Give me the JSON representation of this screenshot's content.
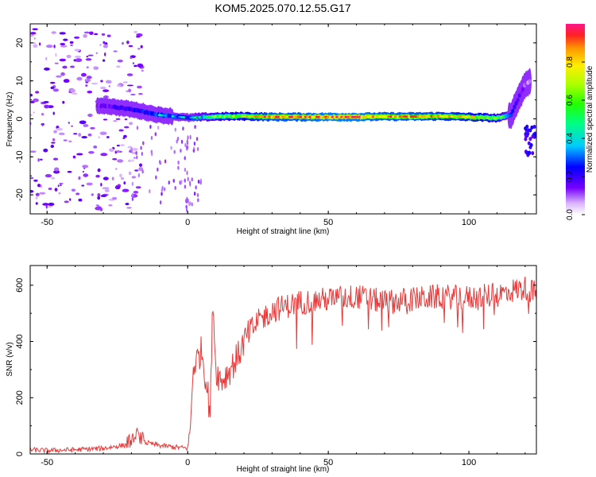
{
  "title": "KOM5.2025.070.12.55.G17",
  "chart_data": [
    {
      "type": "heatmap",
      "title": "KOM5.2025.070.12.55.G17",
      "xlabel": "Height of straight line (km)",
      "ylabel": "Frequency (Hz)",
      "xlim": [
        -56,
        124
      ],
      "ylim": [
        -25,
        25
      ],
      "x_ticks": [
        "-50",
        "0",
        "50",
        "100"
      ],
      "y_ticks": [
        "-20",
        "-10",
        "0",
        "10",
        "20"
      ],
      "colorbar": {
        "label": "Normalized spectral amplitude",
        "range": [
          0.0,
          1.0
        ],
        "ticks": [
          "0.0",
          "0.2",
          "0.4",
          "0.6",
          "0.8"
        ]
      },
      "ridge": {
        "x": [
          -30,
          -20,
          -10,
          0,
          10,
          20,
          30,
          40,
          50,
          60,
          70,
          80,
          90,
          100,
          110,
          115,
          118,
          120,
          122
        ],
        "freq": [
          3.5,
          2.5,
          1.0,
          0.3,
          0.6,
          0.7,
          0.5,
          0.5,
          0.5,
          0.5,
          0.6,
          0.6,
          0.7,
          0.5,
          0.2,
          1.0,
          6.0,
          9.0,
          10.0
        ],
        "amplitude": [
          0.15,
          0.25,
          0.35,
          0.3,
          0.55,
          0.7,
          0.85,
          0.85,
          0.9,
          0.9,
          0.85,
          0.85,
          0.8,
          0.75,
          0.6,
          0.3,
          0.2,
          0.1,
          0.05
        ]
      }
    },
    {
      "type": "line",
      "xlabel": "Height of straight line (km)",
      "ylabel": "SNR (v/v)",
      "xlim": [
        -56,
        124
      ],
      "ylim": [
        0,
        670
      ],
      "x_ticks": [
        "-50",
        "0",
        "50",
        "100"
      ],
      "y_ticks": [
        "0",
        "200",
        "400",
        "600"
      ],
      "color": "#e83a3a",
      "x": [
        -56,
        -50,
        -40,
        -30,
        -20,
        -18,
        -15,
        -10,
        -5,
        0,
        1,
        2,
        3,
        5,
        7,
        8,
        9,
        10,
        12,
        15,
        18,
        20,
        25,
        30,
        40,
        50,
        60,
        70,
        80,
        90,
        100,
        110,
        115,
        120,
        124
      ],
      "y": [
        15,
        12,
        15,
        20,
        35,
        60,
        40,
        30,
        25,
        20,
        100,
        310,
        330,
        370,
        230,
        140,
        560,
        300,
        260,
        300,
        350,
        400,
        470,
        510,
        540,
        550,
        560,
        540,
        550,
        560,
        555,
        565,
        580,
        590,
        570
      ]
    }
  ]
}
